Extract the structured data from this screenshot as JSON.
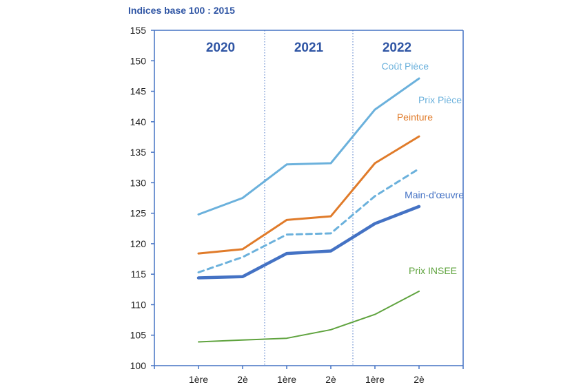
{
  "chart_data": {
    "type": "line",
    "subtitle": "Indices base 100 : 2015",
    "x": [
      "1ère",
      "2è",
      "1ère",
      "2è",
      "1ère",
      "2è"
    ],
    "years": [
      "2020",
      "2021",
      "2022"
    ],
    "ylim": [
      100,
      155
    ],
    "yticks": [
      100,
      105,
      110,
      115,
      120,
      125,
      130,
      135,
      140,
      145,
      150,
      155
    ],
    "series": [
      {
        "name": "Coût Pièce",
        "values": [
          124.8,
          127.5,
          133.0,
          133.2,
          142.0,
          147.1
        ],
        "color": "#6BB1DC",
        "style": "solid",
        "weight": "medium"
      },
      {
        "name": "Peinture",
        "values": [
          118.4,
          119.1,
          123.9,
          124.5,
          133.2,
          137.6
        ],
        "color": "#E07B2A",
        "style": "solid",
        "weight": "medium"
      },
      {
        "name": "Prix Pièce",
        "values": [
          115.3,
          117.8,
          121.5,
          121.7,
          127.8,
          132.3
        ],
        "color": "#6BB1DC",
        "style": "dashed",
        "weight": "medium"
      },
      {
        "name": "Main-d'œuvre",
        "values": [
          114.4,
          114.6,
          118.4,
          118.8,
          123.3,
          126.1
        ],
        "color": "#4472C4",
        "style": "solid",
        "weight": "bold"
      },
      {
        "name": "Prix INSEE",
        "values": [
          103.9,
          104.2,
          104.5,
          105.9,
          108.4,
          112.2
        ],
        "color": "#5FA33E",
        "style": "solid",
        "weight": "thin"
      }
    ],
    "axis_color": "#4472C4",
    "grid": false,
    "year_separators": "dotted"
  }
}
